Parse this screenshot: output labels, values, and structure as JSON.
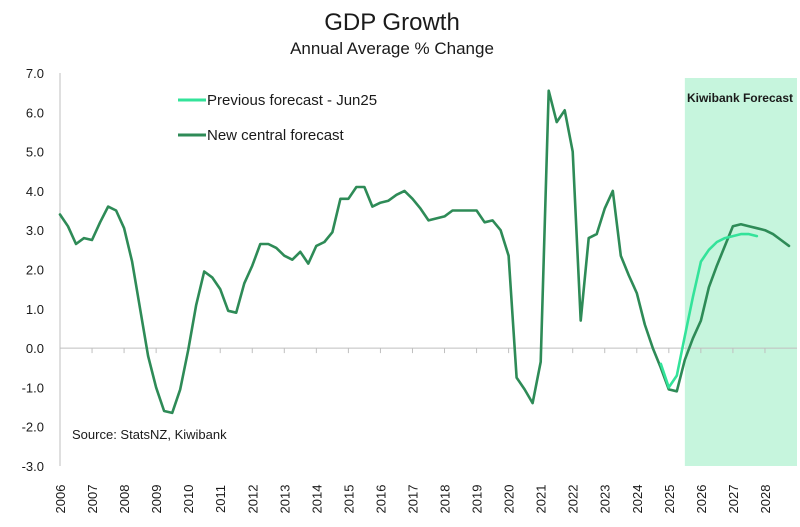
{
  "chart_data": {
    "type": "line",
    "title": "GDP Growth",
    "subtitle": "Annual Average % Change",
    "xlabel": "",
    "ylabel": "",
    "ylim": [
      -3.0,
      7.0
    ],
    "xlim": [
      2006.0,
      2029.0
    ],
    "y_ticks": [
      -3.0,
      -2.0,
      -1.0,
      0.0,
      1.0,
      2.0,
      3.0,
      4.0,
      5.0,
      6.0,
      7.0
    ],
    "y_tick_labels": [
      "-3.0",
      "-2.0",
      "-1.0",
      "0.0",
      "1.0",
      "2.0",
      "3.0",
      "4.0",
      "5.0",
      "6.0",
      "7.0"
    ],
    "x_ticks": [
      2006,
      2007,
      2008,
      2009,
      2010,
      2011,
      2012,
      2013,
      2014,
      2015,
      2016,
      2017,
      2018,
      2019,
      2020,
      2021,
      2022,
      2023,
      2024,
      2025,
      2026,
      2027,
      2028
    ],
    "x_tick_labels": [
      "2006",
      "2007",
      "2008",
      "2009",
      "2010",
      "2011",
      "2012",
      "2013",
      "2014",
      "2015",
      "2016",
      "2017",
      "2018",
      "2019",
      "2020",
      "2021",
      "2022",
      "2023",
      "2024",
      "2025",
      "2026",
      "2027",
      "2028"
    ],
    "grid": false,
    "legend_position": "top-left",
    "forecast_region": {
      "label": "Kiwibank Forecast",
      "start": 2025.5,
      "end": 2029.0,
      "color": "#c6f5dd"
    },
    "source_note": "Source: StatsNZ, Kiwibank",
    "series": [
      {
        "name": "Previous forecast - Jun25",
        "color": "#33e39a",
        "x": [
          2024.75,
          2025.0,
          2025.25,
          2025.5,
          2025.75,
          2026.0,
          2026.25,
          2026.5,
          2026.75,
          2027.0,
          2027.25,
          2027.5,
          2027.75
        ],
        "values": [
          -0.4,
          -1.0,
          -0.7,
          0.3,
          1.3,
          2.2,
          2.5,
          2.7,
          2.8,
          2.85,
          2.9,
          2.9,
          2.85
        ]
      },
      {
        "name": "New central forecast",
        "color": "#2e8b57",
        "x": [
          2006.0,
          2006.25,
          2006.5,
          2006.75,
          2007.0,
          2007.25,
          2007.5,
          2007.75,
          2008.0,
          2008.25,
          2008.5,
          2008.75,
          2009.0,
          2009.25,
          2009.5,
          2009.75,
          2010.0,
          2010.25,
          2010.5,
          2010.75,
          2011.0,
          2011.25,
          2011.5,
          2011.75,
          2012.0,
          2012.25,
          2012.5,
          2012.75,
          2013.0,
          2013.25,
          2013.5,
          2013.75,
          2014.0,
          2014.25,
          2014.5,
          2014.75,
          2015.0,
          2015.25,
          2015.5,
          2015.75,
          2016.0,
          2016.25,
          2016.5,
          2016.75,
          2017.0,
          2017.25,
          2017.5,
          2017.75,
          2018.0,
          2018.25,
          2018.5,
          2018.75,
          2019.0,
          2019.25,
          2019.5,
          2019.75,
          2020.0,
          2020.25,
          2020.5,
          2020.75,
          2021.0,
          2021.25,
          2021.5,
          2021.75,
          2022.0,
          2022.25,
          2022.5,
          2022.75,
          2023.0,
          2023.25,
          2023.5,
          2023.75,
          2024.0,
          2024.25,
          2024.5,
          2024.75,
          2025.0,
          2025.25,
          2025.5,
          2025.75,
          2026.0,
          2026.25,
          2026.5,
          2026.75,
          2027.0,
          2027.25,
          2027.5,
          2027.75,
          2028.0,
          2028.25,
          2028.5,
          2028.75
        ],
        "values": [
          3.4,
          3.1,
          2.65,
          2.8,
          2.75,
          3.2,
          3.6,
          3.5,
          3.05,
          2.2,
          1.0,
          -0.2,
          -1.0,
          -1.6,
          -1.65,
          -1.05,
          -0.05,
          1.1,
          1.95,
          1.8,
          1.5,
          0.95,
          0.9,
          1.65,
          2.1,
          2.65,
          2.65,
          2.55,
          2.35,
          2.25,
          2.45,
          2.15,
          2.6,
          2.7,
          2.95,
          3.8,
          3.8,
          4.1,
          4.1,
          3.6,
          3.7,
          3.75,
          3.9,
          4.0,
          3.8,
          3.55,
          3.25,
          3.3,
          3.35,
          3.5,
          3.5,
          3.5,
          3.5,
          3.2,
          3.25,
          3.0,
          2.35,
          -0.75,
          -1.05,
          -1.4,
          -0.35,
          6.55,
          5.75,
          6.05,
          5.0,
          0.7,
          2.8,
          2.9,
          3.55,
          4.0,
          2.35,
          1.85,
          1.4,
          0.6,
          0.0,
          -0.5,
          -1.05,
          -1.1,
          -0.3,
          0.25,
          0.7,
          1.55,
          2.1,
          2.6,
          3.1,
          3.15,
          3.1,
          3.05,
          3.0,
          2.9,
          2.75,
          2.6
        ]
      }
    ]
  }
}
